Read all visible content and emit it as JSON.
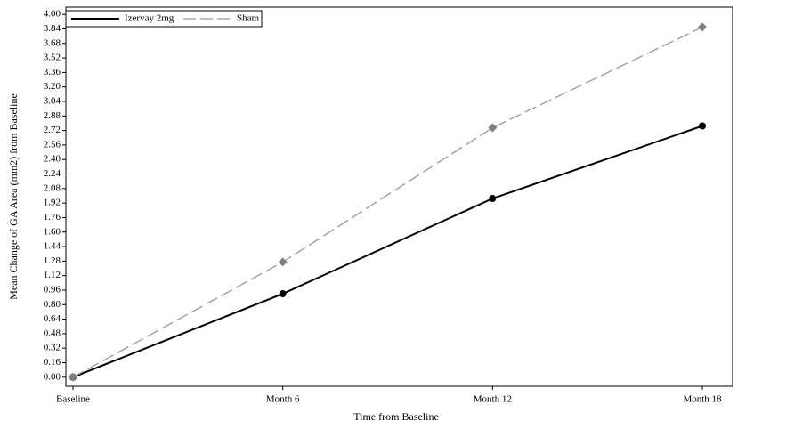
{
  "chart_data": {
    "type": "line",
    "x_label": "Time from Baseline",
    "y_label": "Mean Change of GA Area (mm2) from Baseline",
    "categories": [
      "Baseline",
      "Month 6",
      "Month 12",
      "Month 18"
    ],
    "series": [
      {
        "name": "Izervay 2mg",
        "color": "#000000",
        "dashed": false,
        "marker": "circle",
        "values": [
          0,
          0.92,
          1.97,
          2.77
        ]
      },
      {
        "name": "Sham",
        "color": "#999999",
        "dashed": true,
        "marker": "diamond",
        "values": [
          0,
          1.27,
          2.75,
          3.86
        ]
      }
    ],
    "ylim": [
      -0.1,
      4.08
    ],
    "yticks": [
      {
        "value": 0,
        "label": "0.00"
      },
      0.16,
      0.32,
      0.48,
      0.64,
      {
        "value": 0.8,
        "label": "0.80"
      },
      0.96,
      1.12,
      1.28,
      1.44,
      {
        "value": 1.6,
        "label": "1.60"
      },
      1.76,
      1.92,
      2.08,
      2.24,
      {
        "value": 2.4,
        "label": "2.40"
      },
      2.56,
      2.72,
      2.88,
      3.04,
      {
        "value": 3.2,
        "label": "3.20"
      },
      3.36,
      3.52,
      3.68,
      3.84,
      {
        "value": 4,
        "label": "4.00"
      }
    ],
    "legend": "top-left"
  }
}
